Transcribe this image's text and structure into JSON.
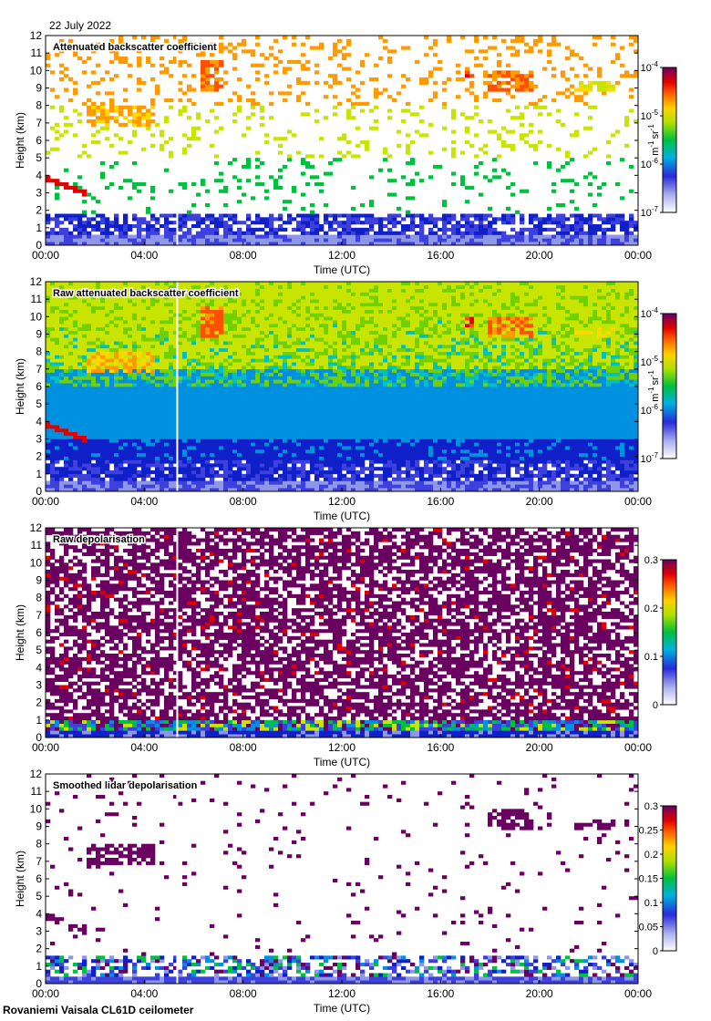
{
  "date": "22 July 2022",
  "footer": "Rovaniemi Vaisala CL61D ceilometer",
  "chart_data": [
    {
      "type": "heatmap",
      "id": "p1",
      "title": "Attenuated backscatter coefficient",
      "xlabel": "Time (UTC)",
      "ylabel": "Height (km)",
      "xticks": [
        "00:00",
        "04:00",
        "08:00",
        "12:00",
        "16:00",
        "20:00",
        "00:00"
      ],
      "yticks": [
        "0",
        "1",
        "2",
        "3",
        "4",
        "5",
        "6",
        "7",
        "8",
        "9",
        "10",
        "11",
        "12"
      ],
      "ylim": [
        0,
        12
      ],
      "scale": "log",
      "colorbar_ticks": [
        "10",
        "10",
        "10",
        "10"
      ],
      "colorbar_exps": [
        "-7",
        "-6",
        "-5",
        "-4"
      ],
      "colorbar_unit": "m",
      "unit_exp_1": "-1",
      "unit_sr": "sr",
      "unit_exp_2": "-1",
      "data_gap_utc": "05:20",
      "features": [
        {
          "name": "boundary layer",
          "t": [
            0,
            24
          ],
          "h": [
            0,
            2.0
          ],
          "level": "low"
        },
        {
          "name": "descending layer",
          "t": [
            0,
            1.7
          ],
          "h": [
            3.9,
            2.9
          ],
          "level": "high"
        },
        {
          "name": "cirrus early",
          "t": [
            1.6,
            4.4
          ],
          "h": [
            6.8,
            8.1
          ],
          "level": "mid-high"
        },
        {
          "name": "cirrus 17h",
          "t": [
            17,
            17.3
          ],
          "h": [
            9.4,
            9.9
          ],
          "level": "high"
        },
        {
          "name": "cirrus 19h",
          "t": [
            18,
            19.8
          ],
          "h": [
            8.8,
            10.0
          ],
          "level": "mid-high"
        },
        {
          "name": "cirrus 22h",
          "t": [
            21.5,
            23.0
          ],
          "h": [
            8.8,
            9.3
          ],
          "level": "mid"
        }
      ]
    },
    {
      "type": "heatmap",
      "id": "p2",
      "title": "Raw attenuated backscatter coefficient",
      "xlabel": "Time (UTC)",
      "ylabel": "Height (km)",
      "xticks": [
        "00:00",
        "04:00",
        "08:00",
        "12:00",
        "16:00",
        "20:00",
        "00:00"
      ],
      "yticks": [
        "0",
        "1",
        "2",
        "3",
        "4",
        "5",
        "6",
        "7",
        "8",
        "9",
        "10",
        "11",
        "12"
      ],
      "ylim": [
        0,
        12
      ],
      "scale": "log",
      "colorbar_ticks": [
        "10",
        "10",
        "10",
        "10"
      ],
      "colorbar_exps": [
        "-7",
        "-6",
        "-5",
        "-4"
      ],
      "colorbar_unit": "m",
      "unit_exp_1": "-1",
      "unit_sr": "sr",
      "unit_exp_2": "-1",
      "data_gap_utc": "05:20"
    },
    {
      "type": "heatmap",
      "id": "p3",
      "title": "Raw depolarisation",
      "xlabel": "Time (UTC)",
      "ylabel": "Height (km)",
      "xticks": [
        "00:00",
        "04:00",
        "08:00",
        "12:00",
        "16:00",
        "20:00",
        "00:00"
      ],
      "yticks": [
        "0",
        "1",
        "2",
        "3",
        "4",
        "5",
        "6",
        "7",
        "8",
        "9",
        "10",
        "11",
        "12"
      ],
      "ylim": [
        0,
        12
      ],
      "scale": "linear",
      "clim": [
        0,
        0.3
      ],
      "colorbar_ticks": [
        "0",
        "0.1",
        "0.2",
        "0.3"
      ],
      "data_gap_utc": "05:20"
    },
    {
      "type": "heatmap",
      "id": "p4",
      "title": "Smoothed lidar depolarisation",
      "xlabel": "Time (UTC)",
      "ylabel": "Height (km)",
      "xticks": [
        "00:00",
        "04:00",
        "08:00",
        "12:00",
        "16:00",
        "20:00",
        "00:00"
      ],
      "yticks": [
        "0",
        "1",
        "2",
        "3",
        "4",
        "5",
        "6",
        "7",
        "8",
        "9",
        "10",
        "11",
        "12"
      ],
      "ylim": [
        0,
        12
      ],
      "scale": "linear",
      "clim": [
        0,
        0.3
      ],
      "colorbar_ticks": [
        "0",
        "0.05",
        "0.1",
        "0.15",
        "0.2",
        "0.25",
        "0.3"
      ],
      "data_gap_utc": "05:20"
    }
  ]
}
